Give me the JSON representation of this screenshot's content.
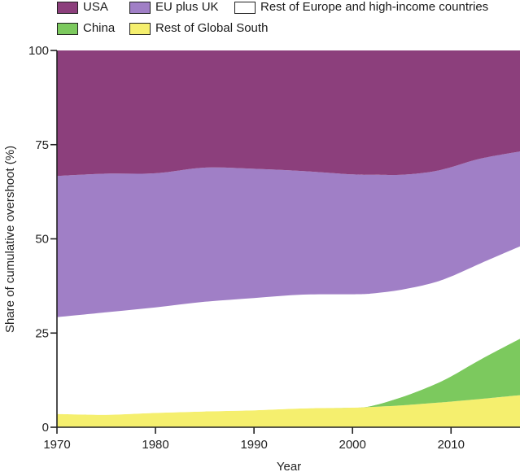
{
  "chart_data": {
    "type": "area",
    "stacked": true,
    "xlabel": "Year",
    "ylabel": "Share of cumulative overshoot (%)",
    "xlim": [
      1970,
      2017
    ],
    "ylim": [
      0,
      100
    ],
    "xticks": [
      1970,
      1980,
      1990,
      2000,
      2010
    ],
    "yticks": [
      0,
      25,
      50,
      75,
      100
    ],
    "legend_position": "top",
    "x": [
      1970,
      1975,
      1980,
      1985,
      1990,
      1995,
      2000,
      2002,
      2005,
      2008,
      2010,
      2013,
      2017
    ],
    "series": [
      {
        "name": "Rest of Global South",
        "color": "#f5ef6e",
        "values": [
          3.5,
          3.3,
          3.8,
          4.2,
          4.5,
          5.0,
          5.2,
          5.4,
          5.8,
          6.4,
          6.8,
          7.5,
          8.5
        ]
      },
      {
        "name": "China",
        "color": "#7cc95e",
        "values": [
          0,
          0,
          0,
          0,
          0,
          0,
          0,
          0.3,
          2.2,
          4.6,
          6.7,
          10.5,
          15.0
        ]
      },
      {
        "name": "Rest of Europe and high-income countries",
        "color": "#ffffff",
        "values": [
          25.7,
          27.2,
          28.0,
          29.1,
          29.8,
          30.2,
          30.1,
          29.8,
          28.5,
          27.2,
          26.5,
          25.5,
          24.5
        ]
      },
      {
        "name": "EU plus UK",
        "color": "#a07fc6",
        "values": [
          37.5,
          36.8,
          35.6,
          35.6,
          34.3,
          32.8,
          31.8,
          31.5,
          30.5,
          29.6,
          29.0,
          27.8,
          25.2
        ]
      },
      {
        "name": "USA",
        "color": "#8c3f7c",
        "values": [
          33.3,
          32.7,
          32.6,
          31.1,
          31.4,
          32.0,
          32.9,
          33.0,
          33.0,
          32.2,
          31.0,
          28.7,
          26.8
        ]
      }
    ]
  },
  "legend": {
    "usa": "USA",
    "eu": "EU plus UK",
    "rest_europe": "Rest of Europe and high-income countries",
    "china": "China",
    "global_south": "Rest of Global South"
  }
}
